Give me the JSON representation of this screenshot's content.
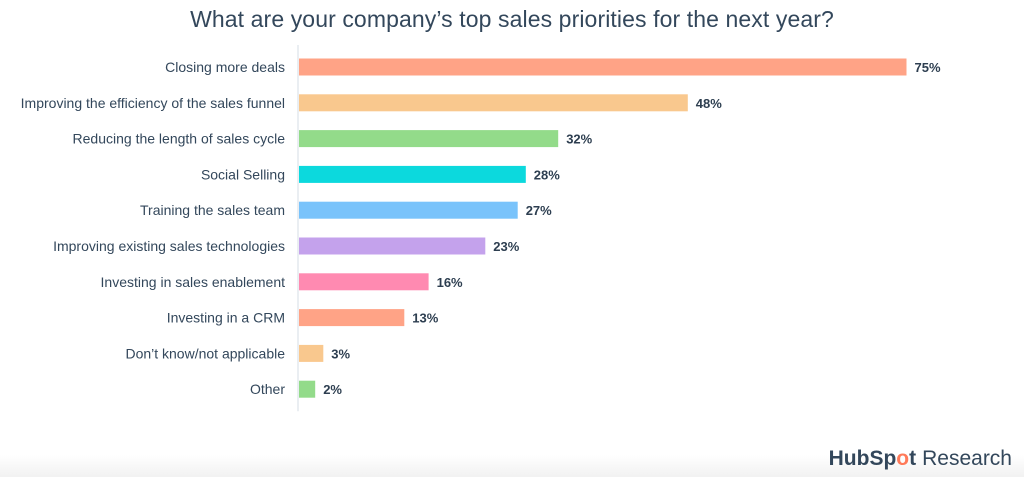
{
  "chart_data": {
    "type": "bar",
    "orientation": "horizontal",
    "title": "What are your company’s top sales priorities for the next year?",
    "categories": [
      "Closing more deals",
      "Improving the efficiency of the sales funnel",
      "Reducing the length of sales cycle",
      "Social Selling",
      "Training the sales team",
      "Improving existing sales technologies",
      "Investing in sales enablement",
      "Investing in a CRM",
      "Don’t know/not applicable",
      "Other"
    ],
    "values": [
      75,
      48,
      32,
      28,
      27,
      23,
      16,
      13,
      3,
      2
    ],
    "value_labels": [
      "75%",
      "48%",
      "32%",
      "28%",
      "27%",
      "23%",
      "16%",
      "13%",
      "3%",
      "2%"
    ],
    "bar_colors": [
      "#ffa386",
      "#f9c88e",
      "#93db8a",
      "#0cd9dd",
      "#79c3fb",
      "#c4a2ec",
      "#ff8ab1",
      "#ffa386",
      "#f9c88e",
      "#93db8a"
    ],
    "xlim": [
      0,
      100
    ],
    "grid": false,
    "legend": "none"
  },
  "brand": {
    "name_part1": "HubSp",
    "name_accent": "o",
    "name_part2": "t",
    "suffix": "Research"
  }
}
